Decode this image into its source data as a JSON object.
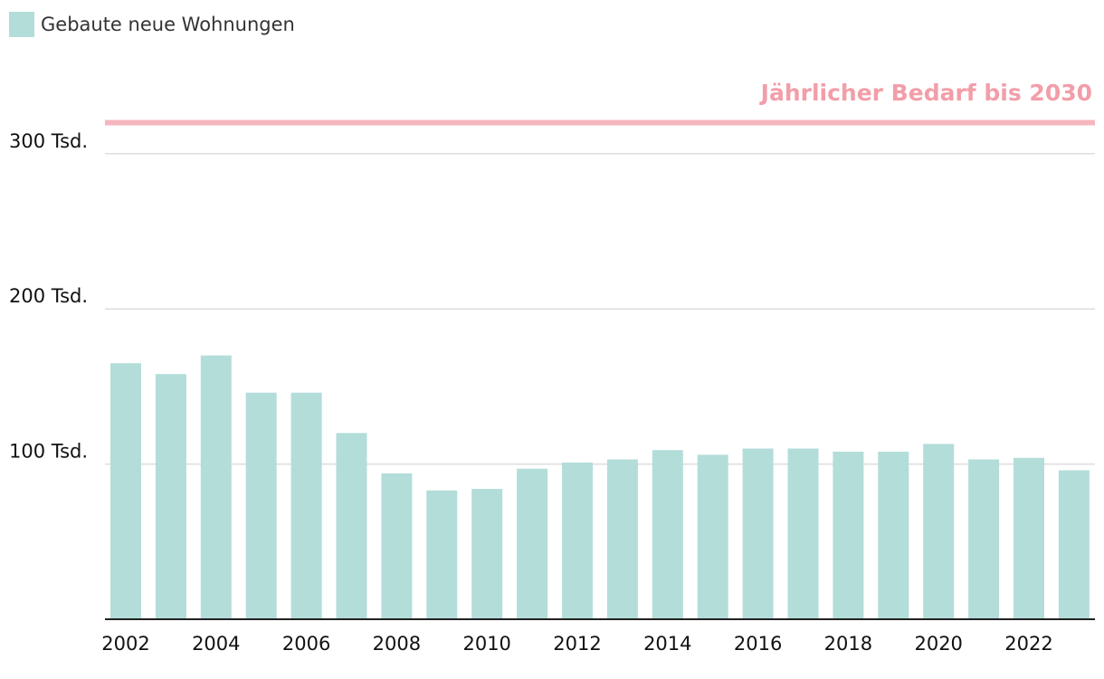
{
  "chart_data": {
    "type": "bar",
    "title": "",
    "xlabel": "",
    "ylabel": "",
    "categories": [
      "2002",
      "2003",
      "2004",
      "2005",
      "2006",
      "2007",
      "2008",
      "2009",
      "2010",
      "2011",
      "2012",
      "2013",
      "2014",
      "2015",
      "2016",
      "2017",
      "2018",
      "2019",
      "2020",
      "2021",
      "2022",
      "2023"
    ],
    "series": [
      {
        "name": "Gebaute neue Wohnungen",
        "color": "#b3ddd9",
        "values": [
          165,
          158,
          170,
          146,
          146,
          120,
          94,
          83,
          84,
          97,
          101,
          103,
          109,
          106,
          110,
          110,
          108,
          108,
          113,
          103,
          104,
          96
        ]
      }
    ],
    "ylim": [
      0,
      320
    ],
    "y_ticks": [
      {
        "value": 100,
        "label": "100 Tsd."
      },
      {
        "value": 200,
        "label": "200 Tsd."
      },
      {
        "value": 300,
        "label": "300 Tsd."
      }
    ],
    "x_tick_labels": [
      "2002",
      "2004",
      "2006",
      "2008",
      "2010",
      "2012",
      "2014",
      "2016",
      "2018",
      "2020",
      "2022"
    ],
    "reference_line": {
      "value": 320,
      "label": "Jährlicher Bedarf bis 2030",
      "color": "#f5b6bf",
      "label_color": "#f29ea9"
    },
    "grid": true,
    "legend_position": "top-left"
  }
}
